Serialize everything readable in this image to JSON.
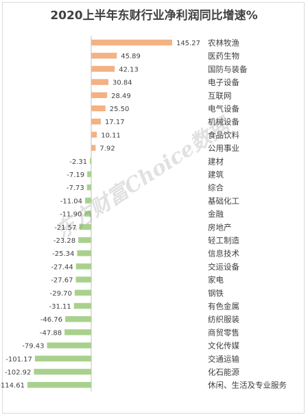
{
  "chart_data": {
    "type": "bar",
    "orientation": "horizontal",
    "title": "2020上半年东财行业净利润同比增速%",
    "categories": [
      "农林牧渔",
      "医药生物",
      "国防与装备",
      "电子设备",
      "互联网",
      "电气设备",
      "机械设备",
      "食品饮料",
      "公用事业",
      "建材",
      "建筑",
      "综合",
      "基础化工",
      "金融",
      "房地产",
      "轻工制造",
      "信息技术",
      "交运设备",
      "家电",
      "钢铁",
      "有色金属",
      "纺织服装",
      "商贸零售",
      "文化传媒",
      "交通运输",
      "化石能源",
      "休闲、生活及专业服务"
    ],
    "value_labels": [
      "145.27",
      "45.89",
      "42.13",
      "30.84",
      "28.49",
      "25.50",
      "17.17",
      "10.11",
      "7.92",
      "-2.31",
      "-7.19",
      "-7.73",
      "-11.04",
      "-11.90",
      "-21.57",
      "-23.28",
      "-25.34",
      "-27.44",
      "-27.67",
      "-29.70",
      "-31.11",
      "-46.76",
      "-47.88",
      "-79.43",
      "-101.17",
      "-102.92",
      "-114.61"
    ],
    "values": [
      145.27,
      45.89,
      42.13,
      30.84,
      28.49,
      25.5,
      17.17,
      10.11,
      7.92,
      -2.31,
      -7.19,
      -7.73,
      -11.04,
      -11.9,
      -21.57,
      -23.28,
      -25.34,
      -27.44,
      -27.67,
      -29.7,
      -31.11,
      -46.76,
      -47.88,
      -79.43,
      -101.17,
      -102.92,
      -114.61
    ],
    "xlim": [
      -120,
      150
    ],
    "grid": false,
    "colors": {
      "positive": "#f4b183",
      "negative": "#a9d18e",
      "axis": "#bfbfbf",
      "text": "#404040"
    }
  },
  "watermark": "东方财富Choice数据"
}
